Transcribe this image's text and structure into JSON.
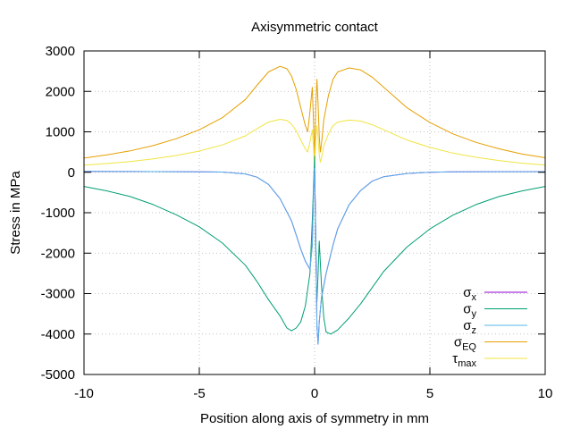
{
  "chart_data": {
    "type": "line",
    "title": "Axisymmetric contact",
    "xlabel": "Position along axis of symmetry in mm",
    "ylabel": "Stress in MPa",
    "xlim": [
      -10,
      10
    ],
    "ylim": [
      -5000,
      3000
    ],
    "xticks": [
      "-10",
      "-5",
      "0",
      "5",
      "10"
    ],
    "yticks": [
      "-5000",
      "-4000",
      "-3000",
      "-2000",
      "-1000",
      "0",
      "1000",
      "2000",
      "3000"
    ],
    "grid": true,
    "legend_position": "bottom-right",
    "series": [
      {
        "name": "σx",
        "label_main": "σ",
        "label_sub": "x",
        "color": "#9400d3",
        "points": [
          [
            -10,
            20
          ],
          [
            -8,
            18
          ],
          [
            -6,
            15
          ],
          [
            -5,
            12
          ],
          [
            -4,
            5
          ],
          [
            -3,
            -40
          ],
          [
            -2.5,
            -120
          ],
          [
            -2,
            -300
          ],
          [
            -1.5,
            -650
          ],
          [
            -1,
            -1200
          ],
          [
            -0.8,
            -1550
          ],
          [
            -0.6,
            -1900
          ],
          [
            -0.4,
            -2200
          ],
          [
            -0.2,
            -2400
          ],
          [
            -0.1,
            -1800
          ],
          [
            -0.05,
            -600
          ],
          [
            0,
            100
          ],
          [
            0.05,
            -1500
          ],
          [
            0.1,
            -3800
          ],
          [
            0.15,
            -4250
          ],
          [
            0.2,
            -3700
          ],
          [
            0.3,
            -3100
          ],
          [
            0.5,
            -2500
          ],
          [
            0.8,
            -1800
          ],
          [
            1,
            -1400
          ],
          [
            1.5,
            -800
          ],
          [
            2,
            -450
          ],
          [
            2.5,
            -220
          ],
          [
            3,
            -110
          ],
          [
            4,
            -30
          ],
          [
            5,
            0
          ],
          [
            6,
            10
          ],
          [
            8,
            15
          ],
          [
            10,
            15
          ]
        ]
      },
      {
        "name": "σy",
        "label_main": "σ",
        "label_sub": "y",
        "color": "#009e73",
        "points": [
          [
            -10,
            -350
          ],
          [
            -9,
            -460
          ],
          [
            -8,
            -600
          ],
          [
            -7,
            -800
          ],
          [
            -6,
            -1050
          ],
          [
            -5,
            -1350
          ],
          [
            -4,
            -1750
          ],
          [
            -3,
            -2300
          ],
          [
            -2.5,
            -2700
          ],
          [
            -2,
            -3150
          ],
          [
            -1.5,
            -3550
          ],
          [
            -1.2,
            -3850
          ],
          [
            -1,
            -3920
          ],
          [
            -0.8,
            -3850
          ],
          [
            -0.6,
            -3700
          ],
          [
            -0.4,
            -3300
          ],
          [
            -0.2,
            -2500
          ],
          [
            -0.1,
            -1200
          ],
          [
            0,
            400
          ],
          [
            0.05,
            -2000
          ],
          [
            0.1,
            -3200
          ],
          [
            0.15,
            -2500
          ],
          [
            0.2,
            -1700
          ],
          [
            0.3,
            -2800
          ],
          [
            0.4,
            -3600
          ],
          [
            0.5,
            -3950
          ],
          [
            0.7,
            -4000
          ],
          [
            1,
            -3900
          ],
          [
            1.5,
            -3600
          ],
          [
            2,
            -3250
          ],
          [
            2.5,
            -2850
          ],
          [
            3,
            -2450
          ],
          [
            4,
            -1850
          ],
          [
            5,
            -1400
          ],
          [
            6,
            -1060
          ],
          [
            7,
            -800
          ],
          [
            8,
            -600
          ],
          [
            9,
            -460
          ],
          [
            10,
            -350
          ]
        ]
      },
      {
        "name": "σz",
        "label_main": "σ",
        "label_sub": "z",
        "color": "#56b4e9",
        "points": [
          [
            -10,
            20
          ],
          [
            -8,
            18
          ],
          [
            -6,
            15
          ],
          [
            -5,
            12
          ],
          [
            -4,
            5
          ],
          [
            -3,
            -40
          ],
          [
            -2.5,
            -120
          ],
          [
            -2,
            -300
          ],
          [
            -1.5,
            -650
          ],
          [
            -1,
            -1200
          ],
          [
            -0.8,
            -1550
          ],
          [
            -0.6,
            -1900
          ],
          [
            -0.4,
            -2200
          ],
          [
            -0.2,
            -2400
          ],
          [
            -0.1,
            -1800
          ],
          [
            -0.05,
            -600
          ],
          [
            0,
            100
          ],
          [
            0.05,
            -1500
          ],
          [
            0.1,
            -3800
          ],
          [
            0.15,
            -4250
          ],
          [
            0.2,
            -3700
          ],
          [
            0.3,
            -3100
          ],
          [
            0.5,
            -2500
          ],
          [
            0.8,
            -1800
          ],
          [
            1,
            -1400
          ],
          [
            1.5,
            -800
          ],
          [
            2,
            -450
          ],
          [
            2.5,
            -220
          ],
          [
            3,
            -110
          ],
          [
            4,
            -30
          ],
          [
            5,
            0
          ],
          [
            6,
            10
          ],
          [
            8,
            15
          ],
          [
            10,
            15
          ]
        ]
      },
      {
        "name": "σEQ",
        "label_main": "σ",
        "label_sub": "EQ",
        "color": "#e69f00",
        "points": [
          [
            -10,
            350
          ],
          [
            -9,
            430
          ],
          [
            -8,
            530
          ],
          [
            -7,
            660
          ],
          [
            -6,
            830
          ],
          [
            -5,
            1050
          ],
          [
            -4,
            1350
          ],
          [
            -3,
            1800
          ],
          [
            -2.5,
            2150
          ],
          [
            -2,
            2480
          ],
          [
            -1.5,
            2620
          ],
          [
            -1.2,
            2560
          ],
          [
            -1,
            2380
          ],
          [
            -0.8,
            2050
          ],
          [
            -0.6,
            1600
          ],
          [
            -0.4,
            1150
          ],
          [
            -0.3,
            1000
          ],
          [
            -0.2,
            1500
          ],
          [
            -0.1,
            2100
          ],
          [
            -0.05,
            1300
          ],
          [
            0,
            300
          ],
          [
            0.05,
            1600
          ],
          [
            0.1,
            2300
          ],
          [
            0.15,
            1700
          ],
          [
            0.2,
            900
          ],
          [
            0.25,
            500
          ],
          [
            0.3,
            700
          ],
          [
            0.4,
            1300
          ],
          [
            0.6,
            1900
          ],
          [
            0.8,
            2300
          ],
          [
            1,
            2480
          ],
          [
            1.5,
            2580
          ],
          [
            2,
            2530
          ],
          [
            2.5,
            2350
          ],
          [
            3,
            2100
          ],
          [
            4,
            1600
          ],
          [
            5,
            1230
          ],
          [
            6,
            950
          ],
          [
            7,
            740
          ],
          [
            8,
            580
          ],
          [
            9,
            450
          ],
          [
            10,
            360
          ]
        ]
      },
      {
        "name": "τmax",
        "label_main": "τ",
        "label_sub": "max",
        "color": "#f0e442",
        "points": [
          [
            -10,
            175
          ],
          [
            -9,
            215
          ],
          [
            -8,
            265
          ],
          [
            -7,
            330
          ],
          [
            -6,
            415
          ],
          [
            -5,
            525
          ],
          [
            -4,
            675
          ],
          [
            -3,
            900
          ],
          [
            -2.5,
            1075
          ],
          [
            -2,
            1240
          ],
          [
            -1.5,
            1310
          ],
          [
            -1.2,
            1280
          ],
          [
            -1,
            1190
          ],
          [
            -0.8,
            1025
          ],
          [
            -0.6,
            800
          ],
          [
            -0.4,
            575
          ],
          [
            -0.3,
            500
          ],
          [
            -0.2,
            750
          ],
          [
            -0.1,
            1050
          ],
          [
            -0.05,
            650
          ],
          [
            0,
            150
          ],
          [
            0.05,
            800
          ],
          [
            0.1,
            1150
          ],
          [
            0.15,
            850
          ],
          [
            0.2,
            450
          ],
          [
            0.25,
            250
          ],
          [
            0.3,
            350
          ],
          [
            0.4,
            650
          ],
          [
            0.6,
            950
          ],
          [
            0.8,
            1150
          ],
          [
            1,
            1240
          ],
          [
            1.5,
            1290
          ],
          [
            2,
            1265
          ],
          [
            2.5,
            1175
          ],
          [
            3,
            1050
          ],
          [
            4,
            800
          ],
          [
            5,
            615
          ],
          [
            6,
            475
          ],
          [
            7,
            370
          ],
          [
            8,
            290
          ],
          [
            9,
            225
          ],
          [
            10,
            180
          ]
        ]
      }
    ]
  }
}
